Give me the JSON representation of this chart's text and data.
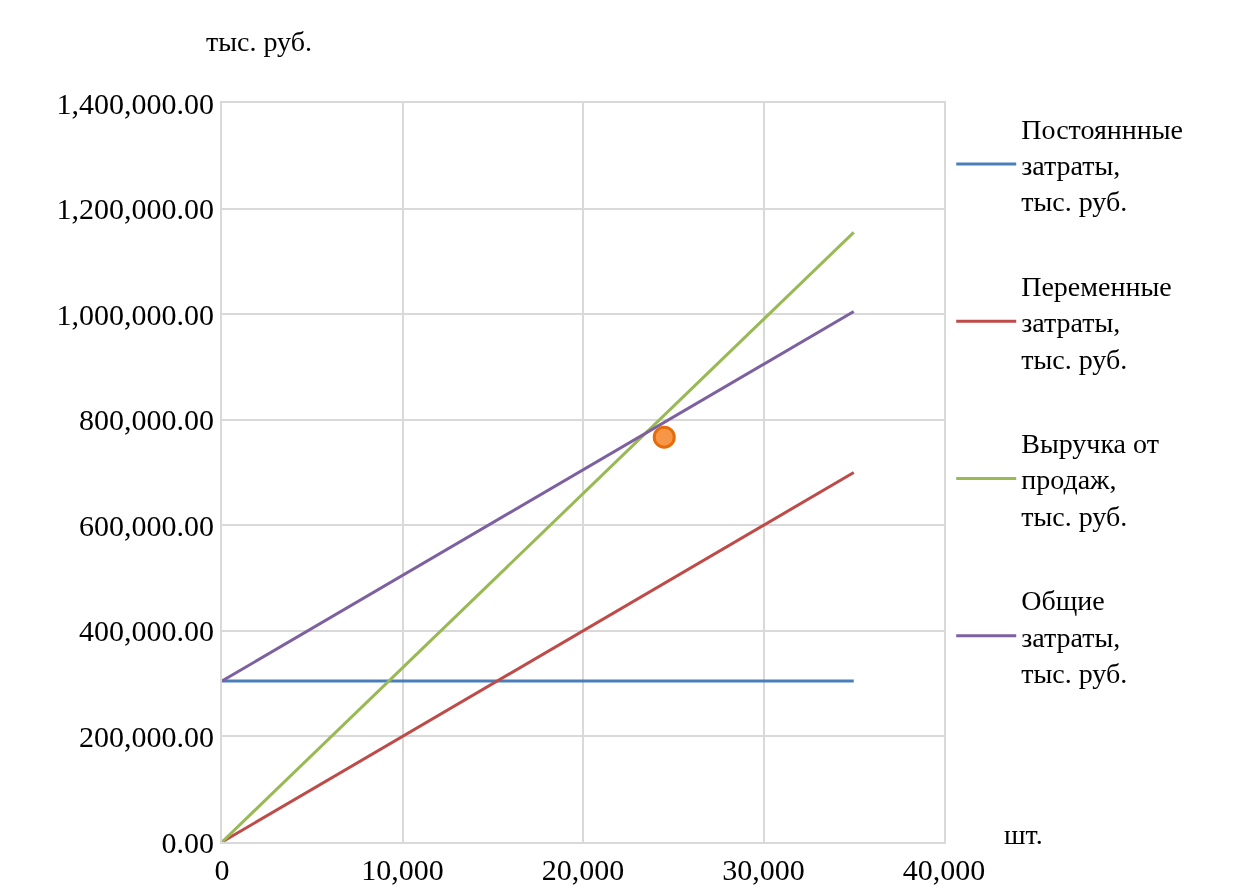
{
  "chart_data": {
    "type": "line",
    "xlabel": "шт.",
    "ylabel": "тыс. руб.",
    "x": [
      0,
      35000
    ],
    "series": [
      {
        "name": "Постояннные затраты, тыс. руб.",
        "color": "#4a7ebb",
        "values": [
          305000,
          305000
        ]
      },
      {
        "name": "Переменные затраты, тыс. руб.",
        "color": "#be4b48",
        "values": [
          0,
          700000
        ]
      },
      {
        "name": "Выручка от продаж, тыс. руб.",
        "color": "#98b954",
        "values": [
          0,
          1155000
        ]
      },
      {
        "name": "Общие затраты, тыс. руб.",
        "color": "#7d60a0",
        "values": [
          305000,
          1005000
        ]
      },
      {
        "type": "scatter",
        "color": "#f79646",
        "marker": "circle",
        "x": [
          24500
        ],
        "values": [
          767000
        ]
      }
    ],
    "xlim": [
      0,
      40000
    ],
    "xticks": [
      0,
      {
        "value": 10000,
        "label": "10,000"
      },
      {
        "value": 20000,
        "label": "20,000"
      },
      {
        "value": 30000,
        "label": "30,000"
      },
      {
        "value": 40000,
        "label": "40,000"
      }
    ],
    "ylim": [
      0,
      1400000
    ],
    "yticks": [
      {
        "value": 0,
        "label": "0.00"
      },
      {
        "value": 200000,
        "label": "200,000.00"
      },
      {
        "value": 400000,
        "label": "400,000.00"
      },
      {
        "value": 600000,
        "label": "600,000.00"
      },
      {
        "value": 800000,
        "label": "800,000.00"
      },
      {
        "value": 1000000,
        "label": "1,000,000.00"
      },
      {
        "value": 1200000,
        "label": "1,200,000.00"
      },
      {
        "value": 1400000,
        "label": "1,400,000.00"
      }
    ],
    "grid": true,
    "legend": "right",
    "line_style": "solid"
  }
}
